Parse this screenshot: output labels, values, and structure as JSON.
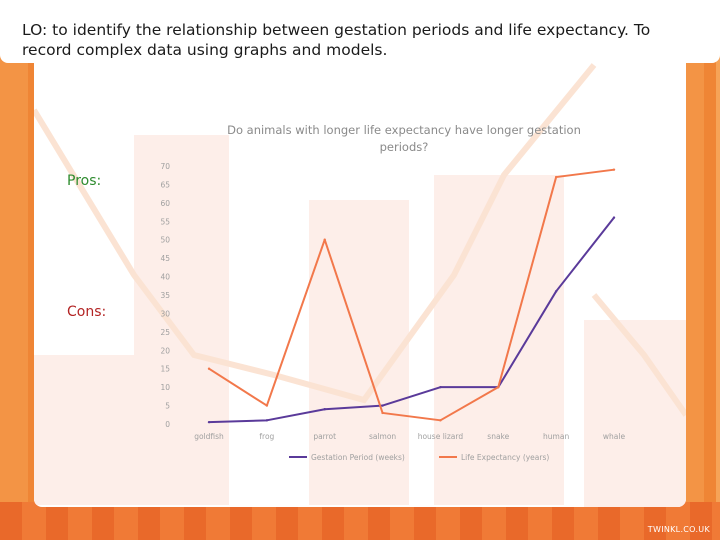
{
  "slide": {
    "objective": "LO: to identify the relationship between gestation periods and life expectancy. To record complex data using graphs and models.",
    "pros_label": "Pros:",
    "cons_label": "Cons:",
    "brand": "TWINKL.CO.UK"
  },
  "colors": {
    "background": "#f08a3c",
    "gestation_line": "#5a3a9a",
    "life_line": "#f2784b",
    "pros": "#2e8b2e",
    "cons": "#b32424"
  },
  "chart_data": {
    "type": "line",
    "title": "Do animals with longer life expectancy have longer gestation periods?",
    "categories": [
      "goldfish",
      "frog",
      "parrot",
      "salmon",
      "house lizard",
      "snake",
      "human",
      "whale"
    ],
    "series": [
      {
        "name": "Gestation Period (weeks)",
        "color": "#5a3a9a",
        "values": [
          0.5,
          1,
          4,
          5,
          10,
          10,
          36,
          56
        ]
      },
      {
        "name": "Life Expectancy (years)",
        "color": "#f2784b",
        "values": [
          15,
          5,
          50,
          3,
          1,
          10,
          67,
          69
        ]
      }
    ],
    "ylim": [
      0,
      70
    ],
    "yticks": [
      0,
      5,
      10,
      15,
      20,
      25,
      30,
      35,
      40,
      45,
      50,
      55,
      60,
      65,
      70
    ],
    "xlabel": "",
    "ylabel": "",
    "grid": false,
    "legend_position": "bottom"
  }
}
